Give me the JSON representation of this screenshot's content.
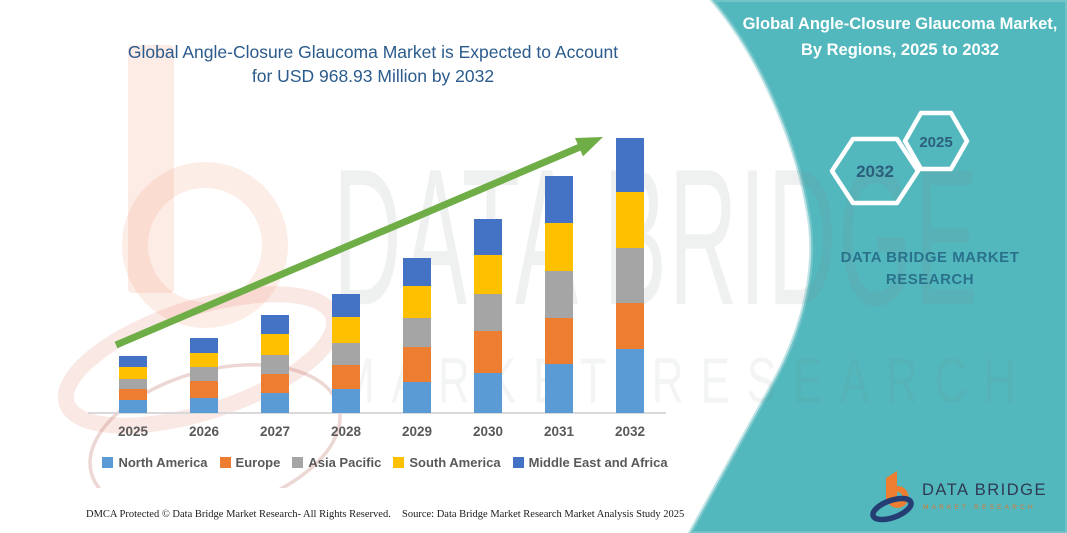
{
  "main_title": {
    "line1": "Global Angle-Closure Glaucoma Market is Expected to Account",
    "line2": "for USD 968.93 Million by 2032"
  },
  "chart_data": {
    "type": "bar",
    "subtype": "stacked-vertical",
    "unit": "USD Million",
    "categories": [
      "2025",
      "2026",
      "2027",
      "2028",
      "2029",
      "2030",
      "2031",
      "2032"
    ],
    "series": [
      {
        "name": "North America",
        "color": "#5B9BD5",
        "values": [
          46,
          53,
          71,
          85,
          110,
          140,
          172,
          224
        ]
      },
      {
        "name": "Europe",
        "color": "#ED7D31",
        "values": [
          39,
          60,
          67,
          85,
          121,
          148,
          163,
          163
        ]
      },
      {
        "name": "Asia Pacific",
        "color": "#A5A5A5",
        "values": [
          35,
          50,
          68,
          78,
          103,
          133,
          166,
          195
        ]
      },
      {
        "name": "South America",
        "color": "#FFC000",
        "values": [
          43,
          50,
          71,
          89,
          114,
          134,
          170,
          195
        ]
      },
      {
        "name": "Middle East and Africa",
        "color": "#4472C4",
        "values": [
          39,
          53,
          67,
          82,
          99,
          130,
          163,
          191.93
        ]
      }
    ],
    "totals": [
      202,
      266,
      344,
      419,
      547,
      685,
      834,
      968.93
    ],
    "ylim": [
      0,
      1000
    ],
    "grid": false,
    "legend_position": "bottom",
    "trend_arrow": true,
    "trend_arrow_color": "#6FAD47",
    "title": "Global Angle-Closure Glaucoma Market is Expected to Account for USD 968.93 Million by 2032",
    "xlabel": "",
    "ylabel": ""
  },
  "right_panel": {
    "background_color": "#52B8BD",
    "title": "Global Angle-Closure Glaucoma Market, By Regions, 2025 to 2032",
    "hexagons": [
      {
        "label": "2032"
      },
      {
        "label": "2025"
      }
    ],
    "brand_line1": "DATA BRIDGE MARKET",
    "brand_line2": "RESEARCH"
  },
  "watermark": {
    "line1": "DATA BRIDGE",
    "line2": "MARKET RESEARCH"
  },
  "corner_logo": {
    "name": "DATA BRIDGE",
    "subtitle": "MARKET RESEARCH"
  },
  "footer": {
    "dmca": "DMCA Protected © Data Bridge Market Research-  All Rights Reserved.",
    "source": "Source: Data Bridge Market Research  Market Analysis Study 2025"
  }
}
